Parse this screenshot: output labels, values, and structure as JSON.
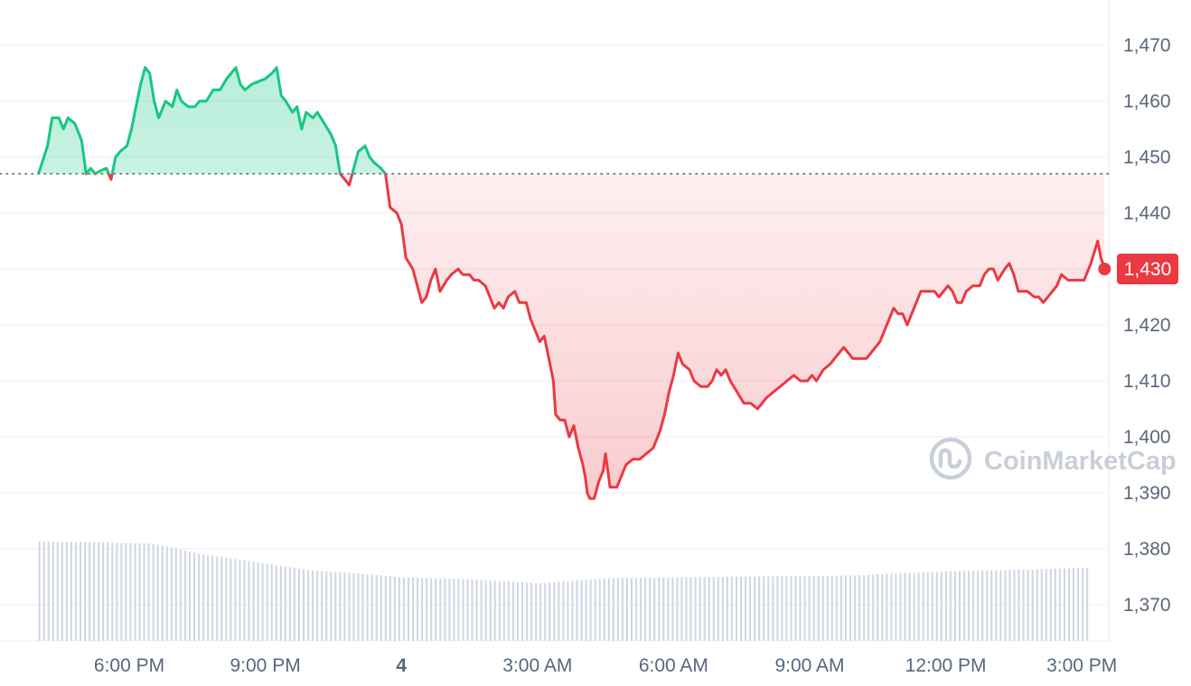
{
  "brand": {
    "watermark": "CoinMarketCap",
    "colors": {
      "up": "#16c784",
      "down": "#ea3943",
      "grid": "#eff2f5",
      "axis_text": "#58667e",
      "volume": "#cfd6e4",
      "watermark": "#c9cfd9"
    }
  },
  "chart_data": {
    "type": "area",
    "baseline": 1447,
    "current_price_label": "1,430",
    "ylim": [
      1363,
      1480
    ],
    "yticks": [
      1370,
      1380,
      1390,
      1400,
      1410,
      1420,
      1430,
      1440,
      1450,
      1460,
      1470
    ],
    "ytick_labels": [
      "1,370",
      "1,380",
      "1,390",
      "1,400",
      "1,410",
      "1,420",
      "1,430",
      "1,440",
      "1,450",
      "1,460",
      "1,470"
    ],
    "xlim_hours": [
      -7.8,
      15.6
    ],
    "xticks": [
      {
        "label": "6:00 PM",
        "hour": -6,
        "bold": false
      },
      {
        "label": "9:00 PM",
        "hour": -3,
        "bold": false
      },
      {
        "label": "4",
        "hour": 0,
        "bold": true
      },
      {
        "label": "3:00 AM",
        "hour": 3,
        "bold": false
      },
      {
        "label": "6:00 AM",
        "hour": 6,
        "bold": false
      },
      {
        "label": "9:00 AM",
        "hour": 9,
        "bold": false
      },
      {
        "label": "12:00 PM",
        "hour": 12,
        "bold": false
      },
      {
        "label": "3:00 PM",
        "hour": 15,
        "bold": false
      }
    ],
    "series": [
      {
        "points": [
          [
            -8.0,
            1447
          ],
          [
            -7.8,
            1452
          ],
          [
            -7.7,
            1457
          ],
          [
            -7.55,
            1457
          ],
          [
            -7.45,
            1455
          ],
          [
            -7.35,
            1457
          ],
          [
            -7.2,
            1456
          ],
          [
            -7.05,
            1453
          ],
          [
            -6.95,
            1447
          ],
          [
            -6.85,
            1448
          ],
          [
            -6.75,
            1447
          ],
          [
            -6.65,
            1447.5
          ],
          [
            -6.5,
            1448
          ],
          [
            -6.4,
            1446
          ],
          [
            -6.3,
            1450
          ],
          [
            -6.2,
            1451
          ],
          [
            -6.05,
            1452
          ],
          [
            -5.95,
            1455
          ],
          [
            -5.85,
            1459
          ],
          [
            -5.75,
            1463
          ],
          [
            -5.65,
            1466
          ],
          [
            -5.55,
            1465
          ],
          [
            -5.45,
            1460
          ],
          [
            -5.35,
            1457
          ],
          [
            -5.2,
            1460
          ],
          [
            -5.05,
            1459
          ],
          [
            -4.95,
            1462
          ],
          [
            -4.85,
            1460
          ],
          [
            -4.7,
            1459
          ],
          [
            -4.55,
            1459
          ],
          [
            -4.45,
            1460
          ],
          [
            -4.3,
            1460
          ],
          [
            -4.15,
            1462
          ],
          [
            -4.0,
            1462
          ],
          [
            -3.85,
            1464
          ],
          [
            -3.75,
            1465
          ],
          [
            -3.65,
            1466
          ],
          [
            -3.55,
            1463
          ],
          [
            -3.45,
            1462
          ],
          [
            -3.3,
            1463
          ],
          [
            -3.15,
            1463.5
          ],
          [
            -3.0,
            1464
          ],
          [
            -2.85,
            1465
          ],
          [
            -2.75,
            1466
          ],
          [
            -2.65,
            1461
          ],
          [
            -2.55,
            1460
          ],
          [
            -2.4,
            1458
          ],
          [
            -2.3,
            1459
          ],
          [
            -2.2,
            1455
          ],
          [
            -2.1,
            1458
          ],
          [
            -1.95,
            1457
          ],
          [
            -1.85,
            1458
          ],
          [
            -1.7,
            1456
          ],
          [
            -1.55,
            1454
          ],
          [
            -1.45,
            1452
          ],
          [
            -1.35,
            1447
          ],
          [
            -1.25,
            1446
          ],
          [
            -1.15,
            1445
          ],
          [
            -1.05,
            1448
          ],
          [
            -0.95,
            1451
          ],
          [
            -0.8,
            1452
          ],
          [
            -0.7,
            1450
          ],
          [
            -0.6,
            1449
          ],
          [
            -0.45,
            1448
          ],
          [
            -0.35,
            1447
          ],
          [
            -0.25,
            1441
          ],
          [
            -0.1,
            1440
          ],
          [
            0.0,
            1438
          ],
          [
            0.1,
            1432
          ],
          [
            0.25,
            1430
          ],
          [
            0.35,
            1427
          ],
          [
            0.45,
            1424
          ],
          [
            0.55,
            1425
          ],
          [
            0.65,
            1428
          ],
          [
            0.75,
            1430
          ],
          [
            0.85,
            1426
          ],
          [
            1.0,
            1428
          ],
          [
            1.1,
            1429
          ],
          [
            1.25,
            1430
          ],
          [
            1.35,
            1429
          ],
          [
            1.5,
            1429
          ],
          [
            1.6,
            1428
          ],
          [
            1.7,
            1428
          ],
          [
            1.85,
            1427
          ],
          [
            1.95,
            1425
          ],
          [
            2.05,
            1423
          ],
          [
            2.15,
            1424
          ],
          [
            2.25,
            1423
          ],
          [
            2.35,
            1425
          ],
          [
            2.5,
            1426
          ],
          [
            2.6,
            1424
          ],
          [
            2.75,
            1424
          ],
          [
            2.85,
            1421
          ],
          [
            2.95,
            1419
          ],
          [
            3.05,
            1417
          ],
          [
            3.15,
            1418
          ],
          [
            3.25,
            1414
          ],
          [
            3.35,
            1410
          ],
          [
            3.4,
            1404
          ],
          [
            3.5,
            1403
          ],
          [
            3.6,
            1403
          ],
          [
            3.7,
            1400
          ],
          [
            3.8,
            1402
          ],
          [
            3.9,
            1398
          ],
          [
            4.0,
            1395
          ],
          [
            4.05,
            1393
          ],
          [
            4.1,
            1390
          ],
          [
            4.15,
            1389
          ],
          [
            4.25,
            1389
          ],
          [
            4.35,
            1392
          ],
          [
            4.45,
            1394
          ],
          [
            4.5,
            1397
          ],
          [
            4.6,
            1391
          ],
          [
            4.75,
            1391
          ],
          [
            4.85,
            1393
          ],
          [
            4.95,
            1395
          ],
          [
            5.1,
            1396
          ],
          [
            5.25,
            1396
          ],
          [
            5.4,
            1397
          ],
          [
            5.55,
            1398
          ],
          [
            5.7,
            1401
          ],
          [
            5.8,
            1404
          ],
          [
            5.9,
            1408
          ],
          [
            6.0,
            1411
          ],
          [
            6.1,
            1415
          ],
          [
            6.2,
            1413
          ],
          [
            6.35,
            1412
          ],
          [
            6.45,
            1410
          ],
          [
            6.6,
            1409
          ],
          [
            6.75,
            1409
          ],
          [
            6.85,
            1410
          ],
          [
            6.95,
            1412
          ],
          [
            7.05,
            1411
          ],
          [
            7.15,
            1412
          ],
          [
            7.25,
            1410
          ],
          [
            7.4,
            1408
          ],
          [
            7.55,
            1406
          ],
          [
            7.7,
            1406
          ],
          [
            7.85,
            1405
          ],
          [
            7.95,
            1406
          ],
          [
            8.05,
            1407
          ],
          [
            8.2,
            1408
          ],
          [
            8.35,
            1409
          ],
          [
            8.5,
            1410
          ],
          [
            8.65,
            1411
          ],
          [
            8.8,
            1410
          ],
          [
            8.95,
            1410
          ],
          [
            9.05,
            1411
          ],
          [
            9.15,
            1410
          ],
          [
            9.3,
            1412
          ],
          [
            9.45,
            1413
          ],
          [
            9.55,
            1414
          ],
          [
            9.65,
            1415
          ],
          [
            9.75,
            1416
          ],
          [
            9.85,
            1415
          ],
          [
            9.95,
            1414
          ],
          [
            10.1,
            1414
          ],
          [
            10.25,
            1414
          ],
          [
            10.35,
            1415
          ],
          [
            10.45,
            1416
          ],
          [
            10.55,
            1417
          ],
          [
            10.65,
            1419
          ],
          [
            10.75,
            1421
          ],
          [
            10.85,
            1423
          ],
          [
            10.95,
            1422
          ],
          [
            11.05,
            1422
          ],
          [
            11.15,
            1420
          ],
          [
            11.25,
            1422
          ],
          [
            11.35,
            1424
          ],
          [
            11.45,
            1426
          ],
          [
            11.6,
            1426
          ],
          [
            11.75,
            1426
          ],
          [
            11.85,
            1425
          ],
          [
            11.95,
            1426
          ],
          [
            12.05,
            1427
          ],
          [
            12.15,
            1426
          ],
          [
            12.25,
            1424
          ],
          [
            12.35,
            1424
          ],
          [
            12.45,
            1426
          ],
          [
            12.6,
            1427
          ],
          [
            12.75,
            1427
          ],
          [
            12.85,
            1429
          ],
          [
            12.95,
            1430
          ],
          [
            13.05,
            1430
          ],
          [
            13.15,
            1428
          ],
          [
            13.3,
            1430
          ],
          [
            13.4,
            1431
          ],
          [
            13.5,
            1429
          ],
          [
            13.6,
            1426
          ],
          [
            13.7,
            1426
          ],
          [
            13.8,
            1426
          ],
          [
            13.95,
            1425
          ],
          [
            14.05,
            1425
          ],
          [
            14.15,
            1424
          ],
          [
            14.25,
            1425
          ],
          [
            14.35,
            1426
          ],
          [
            14.45,
            1427
          ],
          [
            14.55,
            1429
          ],
          [
            14.7,
            1428
          ],
          [
            14.85,
            1428
          ],
          [
            15.05,
            1428
          ],
          [
            15.2,
            1431
          ],
          [
            15.35,
            1435
          ],
          [
            15.42,
            1432
          ],
          [
            15.5,
            1430
          ]
        ]
      }
    ],
    "volume": {
      "start_hour": -8.0,
      "end_hour": 15.3,
      "bar_count": 233,
      "profile": [
        [
          -8.0,
          1.0
        ],
        [
          -6.5,
          0.99
        ],
        [
          -5.5,
          0.98
        ],
        [
          -4.5,
          0.88
        ],
        [
          -3.0,
          0.78
        ],
        [
          -2.0,
          0.71
        ],
        [
          -1.0,
          0.68
        ],
        [
          0.0,
          0.64
        ],
        [
          1.5,
          0.62
        ],
        [
          3.0,
          0.58
        ],
        [
          4.5,
          0.63
        ],
        [
          6.0,
          0.64
        ],
        [
          8.0,
          0.65
        ],
        [
          10.0,
          0.66
        ],
        [
          12.0,
          0.7
        ],
        [
          14.0,
          0.72
        ],
        [
          15.3,
          0.74
        ]
      ]
    }
  }
}
